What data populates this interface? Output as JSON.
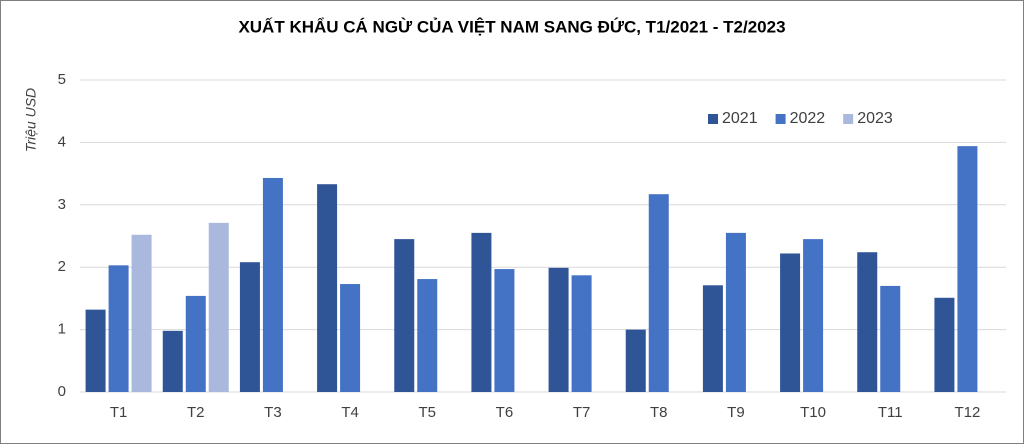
{
  "chart_data": {
    "type": "bar",
    "title": "XUẤT KHẨU CÁ NGỪ CỦA VIỆT NAM SANG ĐỨC, T1/2021 - T2/2023",
    "y_label": "Triệu USD",
    "categories": [
      "T1",
      "T2",
      "T3",
      "T4",
      "T5",
      "T6",
      "T7",
      "T8",
      "T9",
      "T10",
      "T11",
      "T12"
    ],
    "series": [
      {
        "name": "2021",
        "color": "#2f5597",
        "values": [
          1.32,
          0.98,
          2.08,
          3.33,
          2.45,
          2.55,
          1.99,
          1.0,
          1.71,
          2.22,
          2.24,
          1.51
        ]
      },
      {
        "name": "2022",
        "color": "#4472c4",
        "values": [
          2.03,
          1.54,
          3.43,
          1.73,
          1.81,
          1.97,
          1.87,
          3.17,
          2.55,
          2.45,
          1.7,
          3.94
        ]
      },
      {
        "name": "2023",
        "color": "#a9b8dc",
        "values": [
          2.52,
          2.71,
          null,
          null,
          null,
          null,
          null,
          null,
          null,
          null,
          null,
          null
        ]
      }
    ],
    "ylim": [
      0,
      5
    ],
    "yticks": [
      0,
      1,
      2,
      3,
      4,
      5
    ],
    "grid": true,
    "legend": "top-right"
  }
}
